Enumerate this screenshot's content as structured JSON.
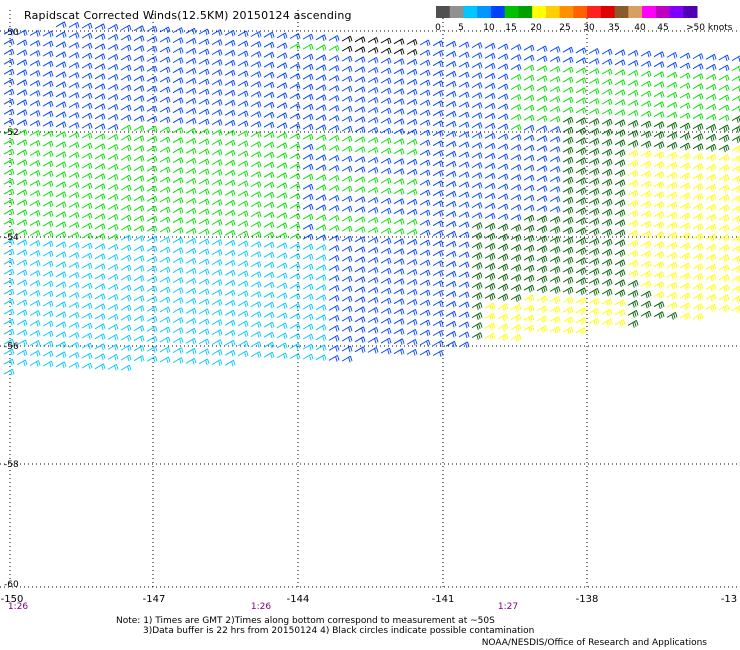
{
  "title": "Rapidscat Corrected Winds(12.5KM) 20150124 ascending",
  "legend": {
    "swatches": [
      "#505050",
      "#909090",
      "#00c8ff",
      "#0096ff",
      "#0040ff",
      "#00c000",
      "#00a000",
      "#ffff00",
      "#ffd000",
      "#ff9000",
      "#ff6000",
      "#ff2020",
      "#e00000",
      "#8b5a2b",
      "#d8a060",
      "#ff00ff",
      "#c000c0",
      "#8000ff",
      "#5000b0"
    ],
    "ticks": [
      "0",
      "5",
      "10",
      "15",
      "20",
      "25",
      "30",
      "35",
      "40",
      "45",
      ">50 knots"
    ]
  },
  "lat_labels": [
    "-50",
    "-52",
    "-54",
    "-56",
    "-58",
    "-60"
  ],
  "lon_labels": [
    "-150",
    "-147",
    "-144",
    "-141",
    "-138",
    "-13"
  ],
  "time_labels": [
    "1:26",
    "1:26",
    "1:27"
  ],
  "notes": {
    "line1": "Note: 1) Times are GMT 2)Times along bottom correspond to measurement at ~50S",
    "line2": "3)Data buffer is 22 hrs from 20150124 4) Black circles indicate possible contamination"
  },
  "credit": "NOAA/NESDIS/Office of Research and Applications",
  "colors": {
    "calm": "#000000",
    "light": "#00c8ff",
    "moderate": "#0040ff",
    "fresh": "#00e000",
    "strong": "#006000",
    "gale": "#ffff00"
  }
}
